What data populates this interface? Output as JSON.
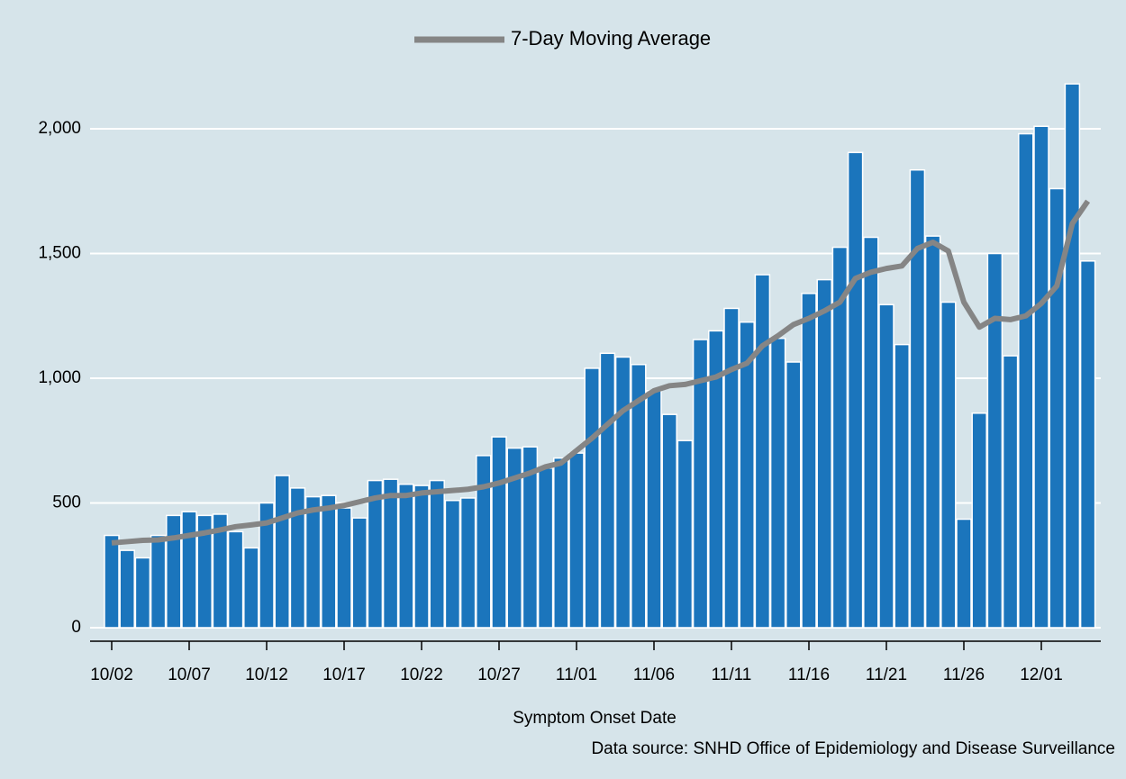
{
  "chart_data": {
    "type": "bar",
    "categories": [
      "10/02",
      null,
      null,
      null,
      null,
      "10/07",
      null,
      null,
      null,
      null,
      "10/12",
      null,
      null,
      null,
      null,
      "10/17",
      null,
      null,
      null,
      null,
      "10/22",
      null,
      null,
      null,
      null,
      "10/27",
      null,
      null,
      null,
      null,
      "11/01",
      null,
      null,
      null,
      null,
      "11/06",
      null,
      null,
      null,
      null,
      "11/11",
      null,
      null,
      null,
      null,
      "11/16",
      null,
      null,
      null,
      null,
      "11/21",
      null,
      null,
      null,
      null,
      "11/26",
      null,
      null,
      null,
      null,
      "12/01",
      null,
      null,
      null
    ],
    "values": [
      370,
      310,
      280,
      370,
      450,
      465,
      450,
      455,
      385,
      320,
      500,
      610,
      560,
      525,
      530,
      480,
      440,
      590,
      595,
      575,
      570,
      590,
      510,
      520,
      690,
      765,
      720,
      725,
      640,
      680,
      700,
      1040,
      1100,
      1085,
      1055,
      950,
      855,
      750,
      1155,
      1190,
      1280,
      1225,
      1415,
      1160,
      1065,
      1340,
      1395,
      1525,
      1905,
      1565,
      1295,
      1135,
      1835,
      1570,
      1305,
      435,
      860,
      1500,
      1090,
      1980,
      2010,
      1760,
      2180,
      1470
    ],
    "color": "#1b75bc",
    "series": [
      {
        "name": "7-Day Moving Average",
        "type": "line",
        "color": "#858585",
        "values": [
          340,
          345,
          350,
          352,
          360,
          370,
          380,
          392,
          405,
          412,
          420,
          440,
          460,
          472,
          480,
          490,
          505,
          520,
          530,
          530,
          540,
          545,
          550,
          555,
          565,
          580,
          600,
          620,
          645,
          660,
          710,
          760,
          815,
          870,
          910,
          950,
          970,
          975,
          990,
          1005,
          1035,
          1060,
          1130,
          1170,
          1215,
          1240,
          1270,
          1305,
          1400,
          1425,
          1440,
          1450,
          1520,
          1545,
          1510,
          1305,
          1205,
          1240,
          1235,
          1250,
          1300,
          1370,
          1620,
          1710
        ]
      }
    ],
    "ylim": [
      0,
      2200
    ],
    "yticks": [
      0,
      500,
      {
        "value": 1000,
        "label": "1,000"
      },
      {
        "value": 1500,
        "label": "1,500"
      },
      {
        "value": 2000,
        "label": "2,000"
      }
    ],
    "grid": true,
    "x_label": "Symptom Onset Date",
    "source": "Data source: SNHD Office of Epidemiology and Disease Surveillance"
  }
}
